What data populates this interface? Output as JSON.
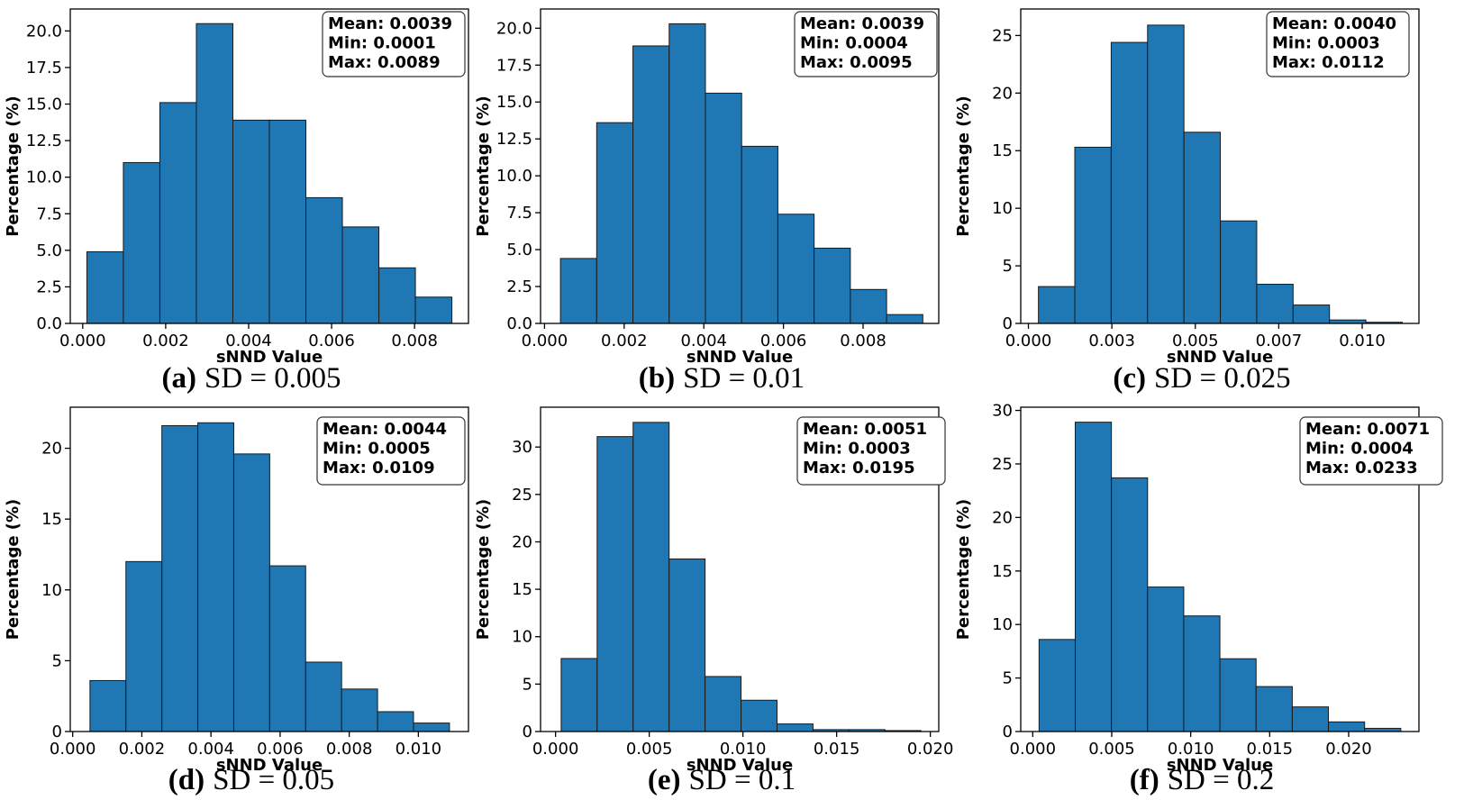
{
  "chart_data": [
    {
      "type": "bar",
      "caption_letter": "(a)",
      "caption_text": "SD = 0.005",
      "xlabel": "sNND Value",
      "ylabel": "Percentage (%)",
      "xlim": [
        -0.0003,
        0.0093
      ],
      "ylim": [
        0,
        21.5
      ],
      "xticks": [
        0.0,
        0.002,
        0.004,
        0.006,
        0.008
      ],
      "xtick_labels": [
        "0.000",
        "0.002",
        "0.004",
        "0.006",
        "0.008"
      ],
      "yticks": [
        0,
        2.5,
        5,
        7.5,
        10,
        12.5,
        15,
        17.5,
        20
      ],
      "ytick_labels": [
        "0.0",
        "2.5",
        "5.0",
        "7.5",
        "10.0",
        "12.5",
        "15.0",
        "17.5",
        "20.0"
      ],
      "bin_edges": [
        0.0001,
        0.00098,
        0.00186,
        0.00274,
        0.00362,
        0.0045,
        0.00538,
        0.00626,
        0.00714,
        0.00802,
        0.0089
      ],
      "values": [
        4.9,
        11.0,
        15.1,
        20.5,
        13.9,
        13.9,
        8.6,
        6.6,
        3.8,
        1.8
      ],
      "stats": [
        "Mean: 0.0039",
        "Min: 0.0001",
        "Max: 0.0089"
      ]
    },
    {
      "type": "bar",
      "caption_letter": "(b)",
      "caption_text": "SD = 0.01",
      "xlabel": "sNND Value",
      "ylabel": "Percentage (%)",
      "xlim": [
        -0.0001,
        0.0099
      ],
      "ylim": [
        0,
        21.3
      ],
      "xticks": [
        0.0,
        0.002,
        0.004,
        0.006,
        0.008
      ],
      "xtick_labels": [
        "0.000",
        "0.002",
        "0.004",
        "0.006",
        "0.008"
      ],
      "yticks": [
        0,
        2.5,
        5,
        7.5,
        10,
        12.5,
        15,
        17.5,
        20
      ],
      "ytick_labels": [
        "0.0",
        "2.5",
        "5.0",
        "7.5",
        "10.0",
        "12.5",
        "15.0",
        "17.5",
        "20.0"
      ],
      "bin_edges": [
        0.0004,
        0.00131,
        0.00222,
        0.00313,
        0.00404,
        0.00495,
        0.00586,
        0.00677,
        0.00768,
        0.00859,
        0.0095
      ],
      "values": [
        4.4,
        13.6,
        18.8,
        20.3,
        15.6,
        12.0,
        7.4,
        5.1,
        2.3,
        0.6
      ],
      "stats": [
        "Mean: 0.0039",
        "Min: 0.0004",
        "Max: 0.0095"
      ]
    },
    {
      "type": "bar",
      "caption_letter": "(c)",
      "caption_text": "SD = 0.025",
      "xlabel": "sNND Value",
      "ylabel": "Percentage (%)",
      "xlim": [
        -0.00023,
        0.0117
      ],
      "ylim": [
        0,
        27.3
      ],
      "xticks": [
        0.0,
        0.0025,
        0.005,
        0.0075,
        0.01
      ],
      "xtick_labels": [
        "0.000",
        "0.003",
        "0.005",
        "0.007",
        "0.010"
      ],
      "yticks": [
        0,
        5,
        10,
        15,
        20,
        25
      ],
      "ytick_labels": [
        "0",
        "5",
        "10",
        "15",
        "20",
        "25"
      ],
      "bin_edges": [
        0.0003,
        0.00139,
        0.00248,
        0.00357,
        0.00466,
        0.00575,
        0.00684,
        0.00793,
        0.00902,
        0.01011,
        0.0112
      ],
      "values": [
        3.2,
        15.3,
        24.4,
        25.9,
        16.6,
        8.9,
        3.4,
        1.6,
        0.3,
        0.1
      ],
      "stats": [
        "Mean: 0.0040",
        "Min: 0.0003",
        "Max: 0.0112"
      ]
    },
    {
      "type": "bar",
      "caption_letter": "(d)",
      "caption_text": "SD = 0.05",
      "xlabel": "sNND Value",
      "ylabel": "Percentage (%)",
      "xlim": [
        -7e-05,
        0.01145
      ],
      "ylim": [
        0,
        22.9
      ],
      "xticks": [
        0.0,
        0.002,
        0.004,
        0.006,
        0.008,
        0.01
      ],
      "xtick_labels": [
        "0.000",
        "0.002",
        "0.004",
        "0.006",
        "0.008",
        "0.010"
      ],
      "yticks": [
        0,
        5,
        10,
        15,
        20
      ],
      "ytick_labels": [
        "0",
        "5",
        "10",
        "15",
        "20"
      ],
      "bin_edges": [
        0.0005,
        0.00154,
        0.00258,
        0.00362,
        0.00466,
        0.0057,
        0.00674,
        0.00778,
        0.00882,
        0.00986,
        0.0109
      ],
      "values": [
        3.6,
        12.0,
        21.6,
        21.8,
        19.6,
        11.7,
        4.9,
        3.0,
        1.4,
        0.6
      ],
      "stats": [
        "Mean: 0.0044",
        "Min: 0.0005",
        "Max: 0.0109"
      ]
    },
    {
      "type": "bar",
      "caption_letter": "(e)",
      "caption_text": "SD = 0.1",
      "xlabel": "sNND Value",
      "ylabel": "Percentage (%)",
      "xlim": [
        -0.0008,
        0.02045
      ],
      "ylim": [
        0,
        34.2
      ],
      "xticks": [
        0.0,
        0.005,
        0.01,
        0.015,
        0.02
      ],
      "xtick_labels": [
        "0.000",
        "0.005",
        "0.010",
        "0.015",
        "0.020"
      ],
      "yticks": [
        0,
        5,
        10,
        15,
        20,
        25,
        30
      ],
      "ytick_labels": [
        "0",
        "5",
        "10",
        "15",
        "20",
        "25",
        "30"
      ],
      "bin_edges": [
        0.0003,
        0.00222,
        0.00414,
        0.00606,
        0.00798,
        0.0099,
        0.01182,
        0.01374,
        0.01566,
        0.01758,
        0.0195
      ],
      "values": [
        7.7,
        31.1,
        32.6,
        18.2,
        5.8,
        3.3,
        0.8,
        0.2,
        0.2,
        0.1
      ],
      "stats": [
        "Mean: 0.0051",
        "Min: 0.0003",
        "Max: 0.0195"
      ]
    },
    {
      "type": "bar",
      "caption_letter": "(f)",
      "caption_text": "SD = 0.2",
      "xlabel": "sNND Value",
      "ylabel": "Percentage (%)",
      "xlim": [
        -0.00076,
        0.02445
      ],
      "ylim": [
        0,
        30.3
      ],
      "xticks": [
        0.0,
        0.005,
        0.01,
        0.015,
        0.02
      ],
      "xtick_labels": [
        "0.000",
        "0.005",
        "0.010",
        "0.015",
        "0.020"
      ],
      "yticks": [
        0,
        5,
        10,
        15,
        20,
        25,
        30
      ],
      "ytick_labels": [
        "0",
        "5",
        "10",
        "15",
        "20",
        "25",
        "30"
      ],
      "bin_edges": [
        0.0004,
        0.00269,
        0.00498,
        0.00727,
        0.00956,
        0.01185,
        0.01414,
        0.01643,
        0.01872,
        0.02101,
        0.0233
      ],
      "values": [
        8.6,
        28.9,
        23.7,
        13.5,
        10.8,
        6.8,
        4.2,
        2.3,
        0.9,
        0.3
      ],
      "stats": [
        "Mean: 0.0071",
        "Min: 0.0004",
        "Max: 0.0233"
      ]
    }
  ],
  "colors": {
    "bar_fill": "#1f77b4",
    "bar_edge": "#1a1a1a",
    "axis": "#000000",
    "background": "#ffffff"
  }
}
